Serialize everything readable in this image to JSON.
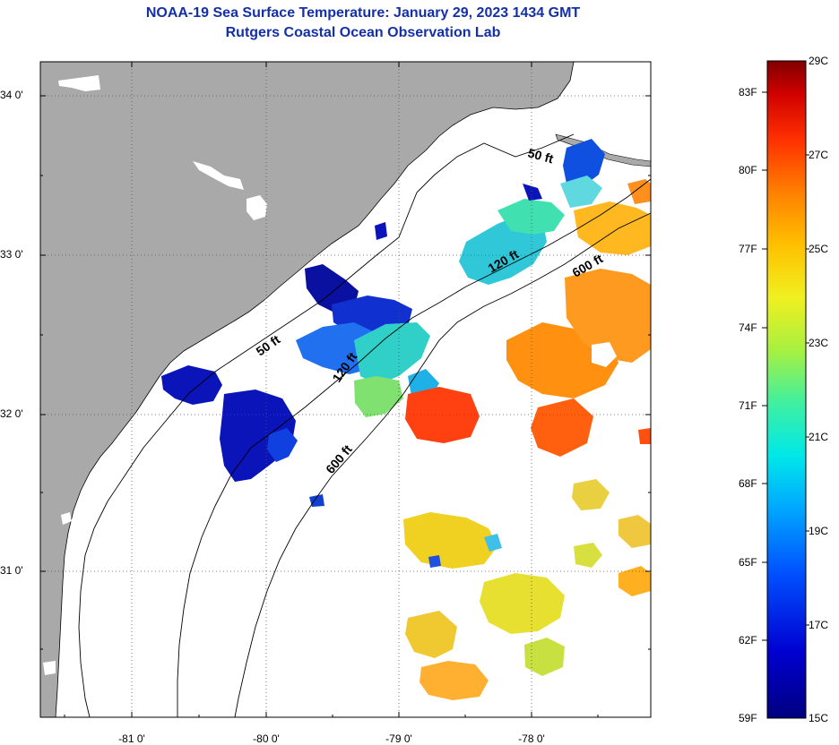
{
  "header": {
    "title": "NOAA-19 Sea Surface Temperature:  January 29, 2023 1434 GMT",
    "subtitle": "Rutgers Coastal Ocean Observation Lab"
  },
  "map": {
    "lat_ticks": [
      "34 0'",
      "33 0'",
      "32 0'",
      "31 0'"
    ],
    "lon_ticks": [
      "-81 0'",
      "-80 0'",
      "-79 0'",
      "-78 0'"
    ],
    "contour_labels": [
      {
        "text": "50 ft"
      },
      {
        "text": "120 ft"
      },
      {
        "text": "600 ft"
      },
      {
        "text": "50 ft"
      },
      {
        "text": "120 ft"
      },
      {
        "text": "600 ft"
      }
    ],
    "colors": {
      "land": "#a9a9a9",
      "ocean": "#ffffff"
    }
  },
  "colorbar": {
    "fahrenheit": [
      "83F",
      "80F",
      "77F",
      "74F",
      "71F",
      "68F",
      "65F",
      "62F",
      "59F"
    ],
    "celsius": [
      "29C",
      "27C",
      "25C",
      "23C",
      "21C",
      "19C",
      "17C",
      "15C"
    ]
  }
}
